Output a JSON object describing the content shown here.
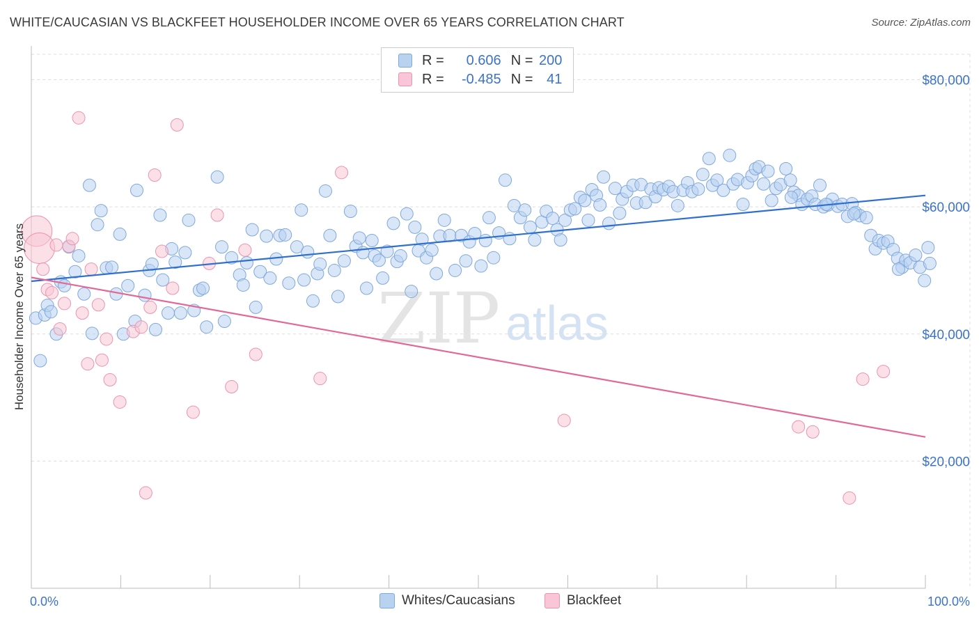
{
  "title": "WHITE/CAUCASIAN VS BLACKFEET HOUSEHOLDER INCOME OVER 65 YEARS CORRELATION CHART",
  "source": "Source: ZipAtlas.com",
  "legend": {
    "rows": [
      {
        "r_label": "R =",
        "r_value": "0.606",
        "n_label": "N =",
        "n_value": "200"
      },
      {
        "r_label": "R =",
        "r_value": "-0.485",
        "n_label": "N =",
        "n_value": "41"
      }
    ]
  },
  "bottom_legend": [
    "Whites/Caucasians",
    "Blackfeet"
  ],
  "watermark": {
    "zip": "ZIP",
    "atlas": "atlas"
  },
  "colors": {
    "blue_fill": "#b8d2f0",
    "blue_stroke": "#7fa8dc",
    "blue_line": "#2e6fd0",
    "pink_fill": "#f8c6d6",
    "pink_stroke": "#eb93b0",
    "pink_line": "#e26895",
    "axis_text_blue": "#3b73c8",
    "grid": "#dddddd"
  },
  "chart_data": {
    "type": "scatter",
    "title": "WHITE/CAUCASIAN VS BLACKFEET HOUSEHOLDER INCOME OVER 65 YEARS CORRELATION CHART",
    "xlabel": "",
    "ylabel": "Householder Income Over 65 years",
    "xlim": [
      0,
      100
    ],
    "ylim": [
      0,
      84000
    ],
    "x_tick_labels": [
      "0.0%",
      "100.0%"
    ],
    "y_ticks": [
      20000,
      40000,
      60000,
      80000
    ],
    "y_tick_labels": [
      "$20,000",
      "$40,000",
      "$60,000",
      "$80,000"
    ],
    "grid": true,
    "legend_position": "top-center",
    "series": [
      {
        "name": "Whites/Caucasians",
        "r": 0.606,
        "n": 200,
        "trend": {
          "x": [
            0,
            100
          ],
          "y": [
            48300,
            61800
          ]
        },
        "points": [
          [
            0.5,
            42500
          ],
          [
            1.5,
            43000
          ],
          [
            1.8,
            44500
          ],
          [
            2.2,
            43500
          ],
          [
            1.0,
            35800
          ],
          [
            2.8,
            40000
          ],
          [
            3.3,
            48200
          ],
          [
            3.7,
            47600
          ],
          [
            4.2,
            53700
          ],
          [
            4.9,
            49800
          ],
          [
            5.3,
            52300
          ],
          [
            5.9,
            46300
          ],
          [
            6.5,
            63400
          ],
          [
            6.8,
            40100
          ],
          [
            7.4,
            57200
          ],
          [
            7.8,
            59400
          ],
          [
            8.4,
            50400
          ],
          [
            9.0,
            50500
          ],
          [
            9.5,
            46300
          ],
          [
            9.9,
            55700
          ],
          [
            10.3,
            40000
          ],
          [
            10.8,
            47600
          ],
          [
            11.6,
            42000
          ],
          [
            11.8,
            62600
          ],
          [
            12.7,
            46100
          ],
          [
            13.2,
            50000
          ],
          [
            13.5,
            51000
          ],
          [
            13.9,
            40700
          ],
          [
            14.4,
            58700
          ],
          [
            14.7,
            48500
          ],
          [
            15.3,
            43300
          ],
          [
            15.7,
            53400
          ],
          [
            16.1,
            51300
          ],
          [
            16.7,
            43300
          ],
          [
            17.2,
            52800
          ],
          [
            17.6,
            57900
          ],
          [
            18.2,
            43700
          ],
          [
            18.8,
            46900
          ],
          [
            19.2,
            47200
          ],
          [
            19.6,
            41100
          ],
          [
            20.8,
            64700
          ],
          [
            21.3,
            53700
          ],
          [
            21.6,
            42000
          ],
          [
            22.4,
            52000
          ],
          [
            23.3,
            49300
          ],
          [
            23.7,
            47700
          ],
          [
            24.1,
            51200
          ],
          [
            24.7,
            56400
          ],
          [
            25.1,
            44200
          ],
          [
            25.6,
            49800
          ],
          [
            26.3,
            55400
          ],
          [
            26.7,
            48800
          ],
          [
            27.4,
            51800
          ],
          [
            27.8,
            55500
          ],
          [
            28.4,
            55600
          ],
          [
            28.8,
            48000
          ],
          [
            29.7,
            53700
          ],
          [
            30.2,
            59500
          ],
          [
            30.5,
            48500
          ],
          [
            30.9,
            52900
          ],
          [
            31.5,
            45200
          ],
          [
            32.0,
            49500
          ],
          [
            32.3,
            51000
          ],
          [
            32.9,
            62500
          ],
          [
            33.4,
            55500
          ],
          [
            33.9,
            50000
          ],
          [
            34.3,
            45900
          ],
          [
            35.0,
            51500
          ],
          [
            35.7,
            59300
          ],
          [
            36.3,
            53800
          ],
          [
            36.7,
            55100
          ],
          [
            37.1,
            52800
          ],
          [
            37.5,
            47200
          ],
          [
            38.1,
            54700
          ],
          [
            38.4,
            52300
          ],
          [
            38.9,
            51600
          ],
          [
            39.3,
            48800
          ],
          [
            39.8,
            53000
          ],
          [
            40.5,
            57400
          ],
          [
            40.9,
            51400
          ],
          [
            41.3,
            52300
          ],
          [
            42.0,
            58900
          ],
          [
            42.5,
            46700
          ],
          [
            42.9,
            56800
          ],
          [
            43.3,
            53100
          ],
          [
            43.7,
            54900
          ],
          [
            44.2,
            52000
          ],
          [
            44.8,
            53200
          ],
          [
            45.3,
            49500
          ],
          [
            45.7,
            55400
          ],
          [
            46.2,
            57900
          ],
          [
            46.8,
            55500
          ],
          [
            47.4,
            50000
          ],
          [
            48.1,
            55500
          ],
          [
            48.6,
            51500
          ],
          [
            49.0,
            54500
          ],
          [
            49.6,
            55800
          ],
          [
            50.3,
            50700
          ],
          [
            50.8,
            54700
          ],
          [
            51.2,
            58300
          ],
          [
            51.7,
            52000
          ],
          [
            52.3,
            55900
          ],
          [
            53.0,
            64200
          ],
          [
            53.5,
            55000
          ],
          [
            54.0,
            60200
          ],
          [
            54.7,
            58300
          ],
          [
            55.2,
            59500
          ],
          [
            55.8,
            56800
          ],
          [
            56.3,
            54800
          ],
          [
            57.1,
            57600
          ],
          [
            57.6,
            59300
          ],
          [
            58.3,
            58200
          ],
          [
            58.8,
            56400
          ],
          [
            59.2,
            54800
          ],
          [
            59.7,
            57900
          ],
          [
            60.3,
            59500
          ],
          [
            60.8,
            59700
          ],
          [
            61.4,
            61500
          ],
          [
            61.9,
            61000
          ],
          [
            62.3,
            57900
          ],
          [
            62.7,
            62700
          ],
          [
            63.2,
            61800
          ],
          [
            63.6,
            60300
          ],
          [
            64.0,
            64700
          ],
          [
            64.6,
            57400
          ],
          [
            65.3,
            62900
          ],
          [
            65.8,
            59000
          ],
          [
            66.1,
            61200
          ],
          [
            66.6,
            62400
          ],
          [
            67.3,
            63400
          ],
          [
            67.7,
            60600
          ],
          [
            68.2,
            63500
          ],
          [
            68.7,
            60700
          ],
          [
            69.3,
            62800
          ],
          [
            69.8,
            61600
          ],
          [
            70.2,
            63000
          ],
          [
            70.7,
            62700
          ],
          [
            71.3,
            63200
          ],
          [
            71.8,
            62400
          ],
          [
            72.3,
            60200
          ],
          [
            72.9,
            62600
          ],
          [
            73.4,
            63800
          ],
          [
            73.9,
            62400
          ],
          [
            74.6,
            62800
          ],
          [
            75.1,
            65100
          ],
          [
            75.8,
            67600
          ],
          [
            76.2,
            63400
          ],
          [
            76.7,
            64200
          ],
          [
            77.4,
            62600
          ],
          [
            78.1,
            68100
          ],
          [
            78.5,
            63600
          ],
          [
            79.0,
            64300
          ],
          [
            79.6,
            60400
          ],
          [
            80.1,
            63800
          ],
          [
            80.6,
            64900
          ],
          [
            81.0,
            66000
          ],
          [
            81.4,
            66300
          ],
          [
            81.9,
            63600
          ],
          [
            82.4,
            65600
          ],
          [
            82.8,
            61000
          ],
          [
            83.3,
            62900
          ],
          [
            83.8,
            63500
          ],
          [
            84.4,
            66000
          ],
          [
            84.9,
            64200
          ],
          [
            85.3,
            62300
          ],
          [
            85.8,
            61800
          ],
          [
            86.2,
            60400
          ],
          [
            86.8,
            61200
          ],
          [
            87.3,
            61700
          ],
          [
            87.7,
            60400
          ],
          [
            88.2,
            63400
          ],
          [
            88.6,
            60000
          ],
          [
            89.1,
            60300
          ],
          [
            89.6,
            61200
          ],
          [
            90.2,
            60100
          ],
          [
            90.7,
            60400
          ],
          [
            91.3,
            58500
          ],
          [
            91.8,
            60500
          ],
          [
            92.2,
            59100
          ],
          [
            92.7,
            58600
          ],
          [
            93.4,
            58300
          ],
          [
            93.9,
            55500
          ],
          [
            94.4,
            53400
          ],
          [
            94.8,
            54700
          ],
          [
            95.3,
            54300
          ],
          [
            95.8,
            54600
          ],
          [
            96.4,
            53300
          ],
          [
            96.9,
            51900
          ],
          [
            97.4,
            50500
          ],
          [
            97.8,
            51600
          ],
          [
            98.3,
            51200
          ],
          [
            98.9,
            52400
          ],
          [
            99.4,
            50500
          ],
          [
            99.9,
            48400
          ],
          [
            100.3,
            53600
          ],
          [
            100.5,
            51100
          ],
          [
            97.0,
            50200
          ],
          [
            92.0,
            58900
          ],
          [
            88.9,
            60400
          ],
          [
            85.0,
            61500
          ]
        ]
      },
      {
        "name": "Blackfeet",
        "r": -0.485,
        "n": 41,
        "trend": {
          "x": [
            0,
            100
          ],
          "y": [
            48900,
            23800
          ]
        },
        "points": [
          [
            0.6,
            56200
          ],
          [
            0.9,
            53500
          ],
          [
            1.3,
            50200
          ],
          [
            1.8,
            47000
          ],
          [
            2.3,
            46500
          ],
          [
            2.8,
            54000
          ],
          [
            3.2,
            40800
          ],
          [
            3.7,
            44800
          ],
          [
            4.2,
            53800
          ],
          [
            4.6,
            55000
          ],
          [
            5.7,
            43300
          ],
          [
            6.3,
            35300
          ],
          [
            6.7,
            50200
          ],
          [
            7.5,
            44600
          ],
          [
            7.9,
            35900
          ],
          [
            8.4,
            39200
          ],
          [
            8.8,
            32800
          ],
          [
            9.9,
            29300
          ],
          [
            11.4,
            40400
          ],
          [
            12.3,
            41100
          ],
          [
            12.8,
            15000
          ],
          [
            13.3,
            44200
          ],
          [
            13.8,
            65000
          ],
          [
            14.6,
            53000
          ],
          [
            15.8,
            47200
          ],
          [
            16.3,
            72900
          ],
          [
            18.1,
            27700
          ],
          [
            19.9,
            51100
          ],
          [
            20.8,
            58700
          ],
          [
            22.4,
            31700
          ],
          [
            23.9,
            53200
          ],
          [
            25.1,
            36800
          ],
          [
            32.3,
            33000
          ],
          [
            34.7,
            65400
          ],
          [
            59.6,
            26400
          ],
          [
            85.8,
            25400
          ],
          [
            87.4,
            24600
          ],
          [
            91.5,
            14200
          ],
          [
            93.0,
            32900
          ],
          [
            95.3,
            34100
          ],
          [
            5.3,
            74000
          ]
        ]
      }
    ]
  }
}
